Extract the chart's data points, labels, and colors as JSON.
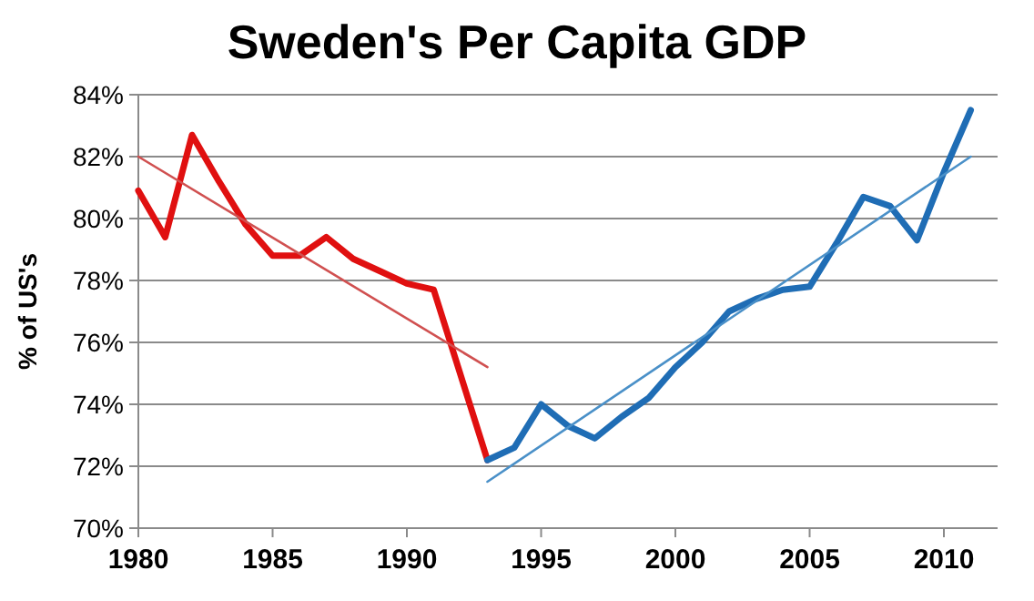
{
  "chart_data": {
    "type": "line",
    "title": "Sweden's Per Capita GDP",
    "ylabel": "% of US's",
    "xlim": [
      1980,
      2012
    ],
    "xticks": [
      1980,
      1985,
      1990,
      1995,
      2000,
      2005,
      2010
    ],
    "ylim": [
      70,
      84
    ],
    "yticks": [
      {
        "value": 70,
        "label": "70%"
      },
      {
        "value": 72,
        "label": "72%"
      },
      {
        "value": 74,
        "label": "74%"
      },
      {
        "value": 76,
        "label": "76%"
      },
      {
        "value": 78,
        "label": "78%"
      },
      {
        "value": 80,
        "label": "80%"
      },
      {
        "value": 82,
        "label": "82%"
      },
      {
        "value": 84,
        "label": "84%"
      }
    ],
    "grid": "y",
    "marker": "none",
    "line_style": "solid",
    "series": [
      {
        "color": "#e01010",
        "x": [
          1980,
          1981,
          1982,
          1983,
          1984,
          1985,
          1986,
          1987,
          1988,
          1989,
          1990,
          1991,
          1993
        ],
        "values": [
          80.9,
          79.4,
          82.7,
          81.2,
          79.8,
          78.8,
          78.8,
          79.4,
          78.7,
          78.3,
          77.9,
          77.7,
          72.2
        ]
      },
      {
        "color": "#1f6db5",
        "x": [
          1993,
          1994,
          1995,
          1996,
          1997,
          1998,
          1999,
          2000,
          2001,
          2002,
          2003,
          2004,
          2005,
          2006,
          2007,
          2008,
          2009,
          2010,
          2011
        ],
        "values": [
          72.2,
          72.6,
          74.0,
          73.3,
          72.9,
          73.6,
          74.2,
          75.2,
          76.0,
          77.0,
          77.4,
          77.7,
          77.8,
          79.2,
          80.7,
          80.4,
          79.3,
          81.5,
          83.5
        ]
      },
      {
        "color": "#d05050",
        "x": [
          1980,
          1993
        ],
        "values": [
          82.0,
          75.2
        ]
      },
      {
        "color": "#4a90c8",
        "x": [
          1993,
          2011
        ],
        "values": [
          71.5,
          82.0
        ]
      }
    ]
  }
}
